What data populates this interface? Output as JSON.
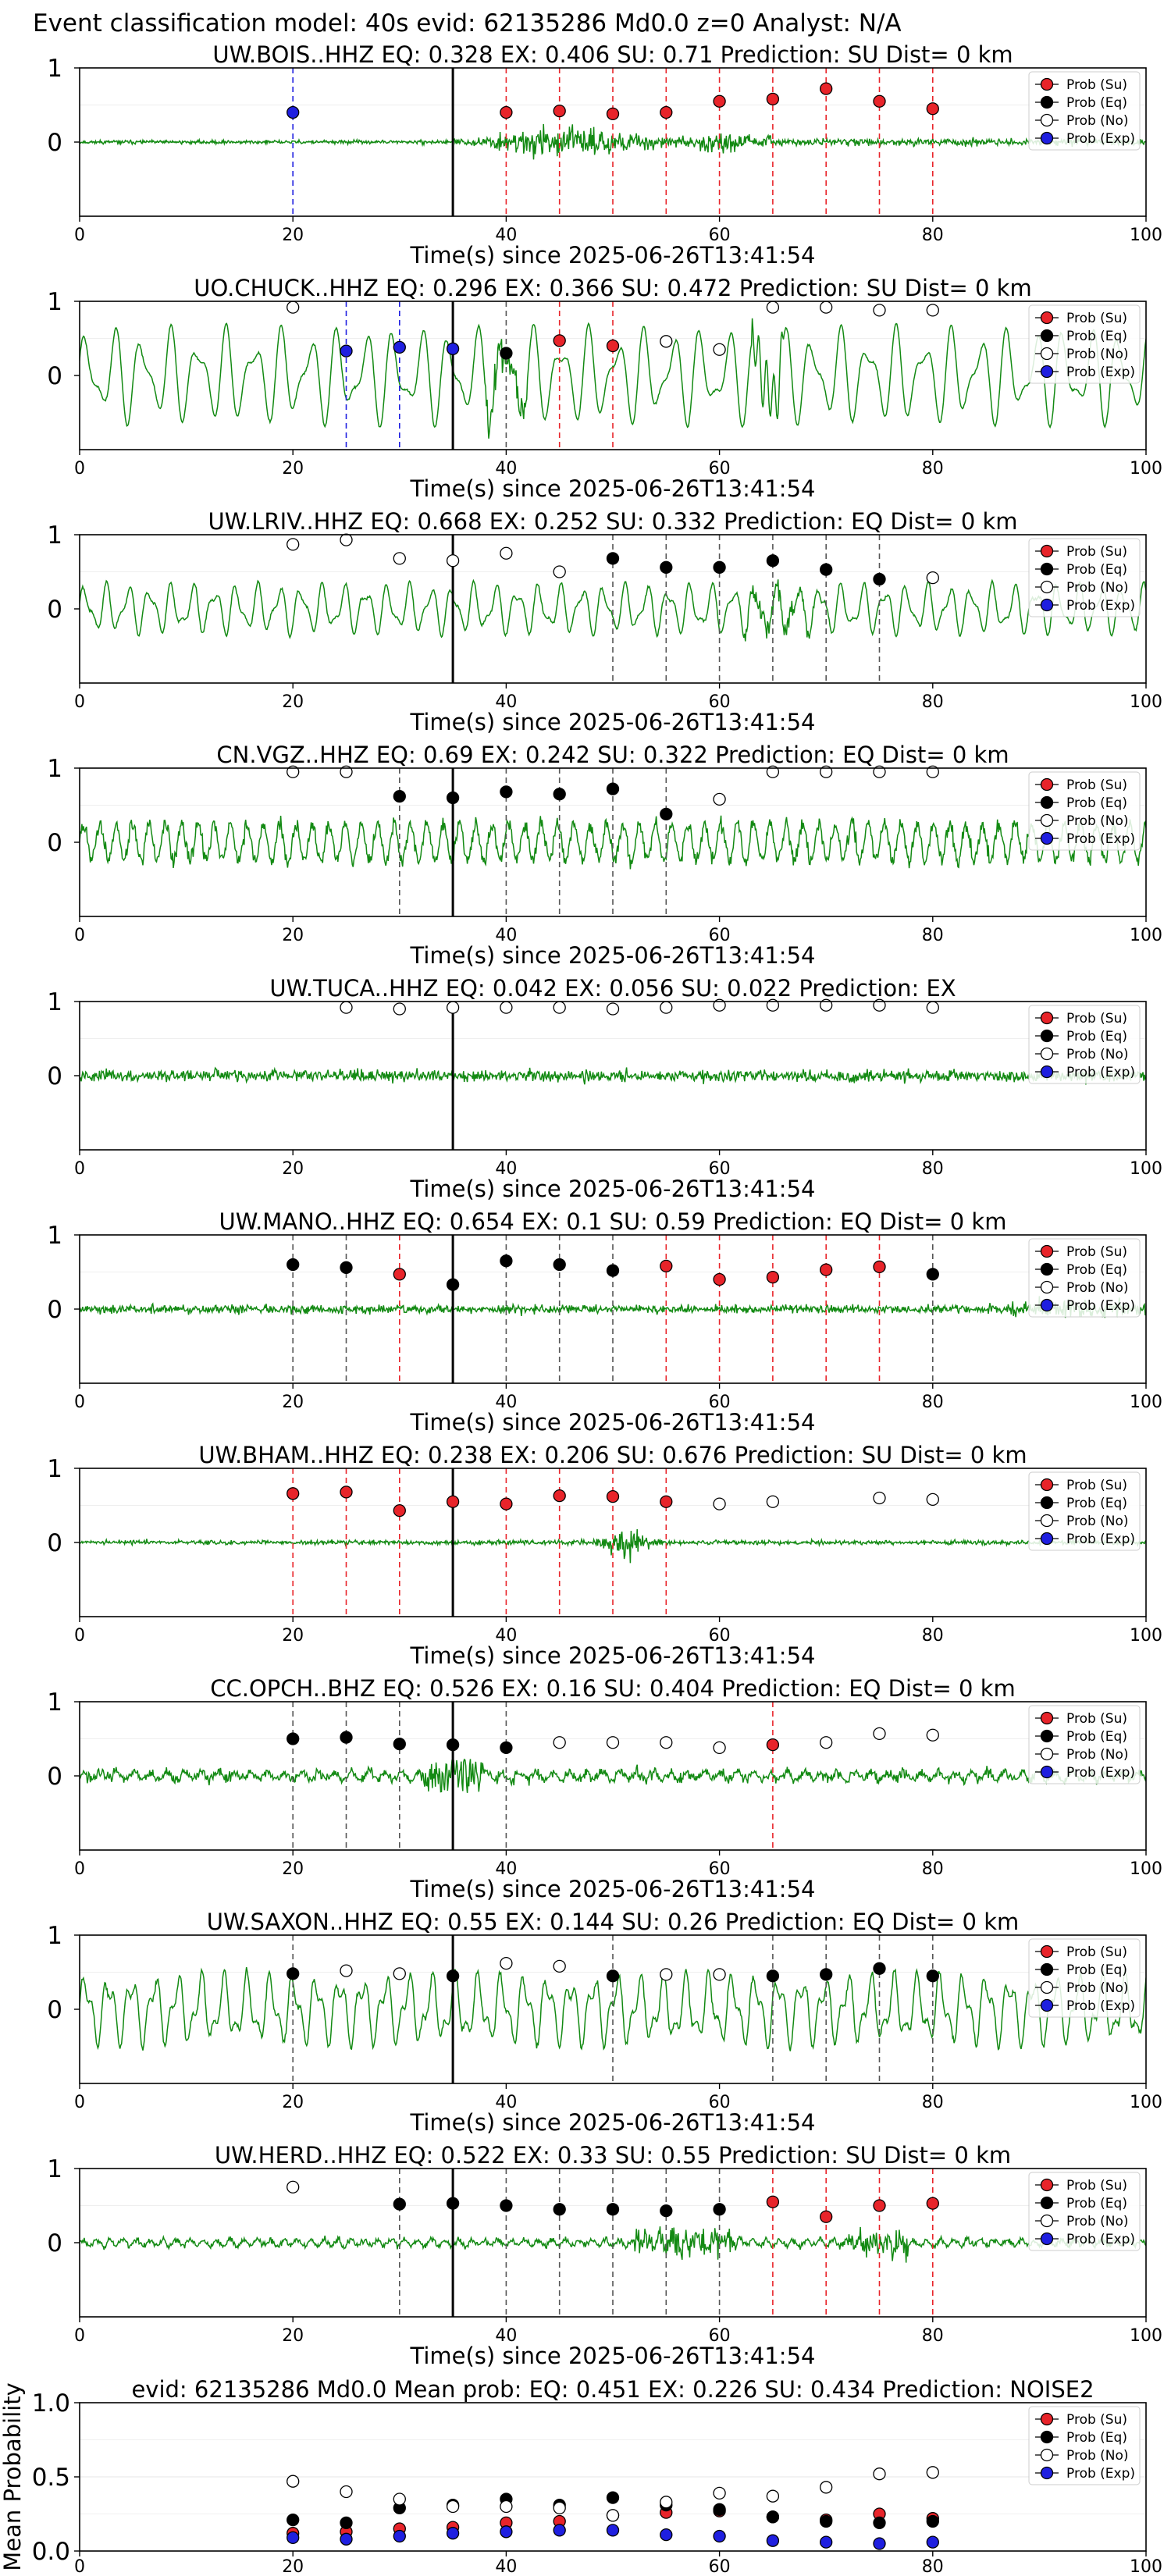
{
  "figure_title": "Event classification model: 40s evid: 62135286 Md0.0 z=0 Analyst: N/A",
  "legend_labels": [
    "Prob (Su)",
    "Prob (Eq)",
    "Prob (No)",
    "Prob (Exp)"
  ],
  "colors": {
    "su": "#e8242a",
    "eq": "#000000",
    "no": "#ffffff",
    "exp": "#1f1fe0",
    "wave": "#138a13",
    "tmark": "#000000"
  },
  "x_ticks": [
    0,
    20,
    40,
    60,
    80,
    100
  ],
  "xlabel": "Time(s) since 2025-06-26T13:41:54",
  "chart_data": [
    {
      "type": "line",
      "title": "UW.BOIS..HHZ   EQ: 0.328   EX: 0.406   SU: 0.71   Prediction: SU    Dist= 0 km",
      "xlabel": "Time(s) since 2025-06-26T13:41:54",
      "xlim": [
        0,
        100
      ],
      "y_ticks": [
        0,
        1
      ],
      "t_marker": 35,
      "wave": {
        "seed": 11,
        "style": "bois"
      },
      "points": [
        {
          "x": 20,
          "y": 0.4,
          "c": "exp"
        },
        {
          "x": 40,
          "y": 0.4,
          "c": "su"
        },
        {
          "x": 45,
          "y": 0.42,
          "c": "su"
        },
        {
          "x": 50,
          "y": 0.38,
          "c": "su"
        },
        {
          "x": 55,
          "y": 0.4,
          "c": "su"
        },
        {
          "x": 60,
          "y": 0.55,
          "c": "su"
        },
        {
          "x": 65,
          "y": 0.58,
          "c": "su"
        },
        {
          "x": 70,
          "y": 0.72,
          "c": "su"
        },
        {
          "x": 75,
          "y": 0.55,
          "c": "su"
        },
        {
          "x": 80,
          "y": 0.45,
          "c": "su"
        }
      ]
    },
    {
      "type": "line",
      "title": "UO.CHUCK..HHZ   EQ: 0.296   EX: 0.366   SU: 0.472   Prediction: SU    Dist= 0 km",
      "xlabel": "Time(s) since 2025-06-26T13:41:54",
      "xlim": [
        0,
        100
      ],
      "y_ticks": [
        0,
        1
      ],
      "t_marker": 35,
      "wave": {
        "seed": 22,
        "style": "lowfreq"
      },
      "points": [
        {
          "x": 20,
          "y": 0.92,
          "c": "no"
        },
        {
          "x": 25,
          "y": 0.33,
          "c": "exp"
        },
        {
          "x": 30,
          "y": 0.38,
          "c": "exp"
        },
        {
          "x": 35,
          "y": 0.36,
          "c": "exp"
        },
        {
          "x": 40,
          "y": 0.3,
          "c": "eq"
        },
        {
          "x": 45,
          "y": 0.47,
          "c": "su"
        },
        {
          "x": 50,
          "y": 0.4,
          "c": "su"
        },
        {
          "x": 55,
          "y": 0.46,
          "c": "no"
        },
        {
          "x": 60,
          "y": 0.35,
          "c": "no"
        },
        {
          "x": 65,
          "y": 0.92,
          "c": "no"
        },
        {
          "x": 70,
          "y": 0.92,
          "c": "no"
        },
        {
          "x": 75,
          "y": 0.88,
          "c": "no"
        },
        {
          "x": 80,
          "y": 0.88,
          "c": "no"
        }
      ]
    },
    {
      "type": "line",
      "title": "UW.LRIV..HHZ   EQ: 0.668   EX: 0.252   SU: 0.332   Prediction: EQ    Dist= 0 km",
      "xlabel": "Time(s) since 2025-06-26T13:41:54",
      "xlim": [
        0,
        100
      ],
      "y_ticks": [
        0,
        1
      ],
      "t_marker": 35,
      "wave": {
        "seed": 33,
        "style": "lriv"
      },
      "points": [
        {
          "x": 20,
          "y": 0.87,
          "c": "no"
        },
        {
          "x": 25,
          "y": 0.93,
          "c": "no"
        },
        {
          "x": 30,
          "y": 0.68,
          "c": "no"
        },
        {
          "x": 35,
          "y": 0.65,
          "c": "no"
        },
        {
          "x": 40,
          "y": 0.75,
          "c": "no"
        },
        {
          "x": 45,
          "y": 0.5,
          "c": "no"
        },
        {
          "x": 50,
          "y": 0.68,
          "c": "eq"
        },
        {
          "x": 55,
          "y": 0.56,
          "c": "eq"
        },
        {
          "x": 60,
          "y": 0.56,
          "c": "eq"
        },
        {
          "x": 65,
          "y": 0.65,
          "c": "eq"
        },
        {
          "x": 70,
          "y": 0.53,
          "c": "eq"
        },
        {
          "x": 75,
          "y": 0.4,
          "c": "eq"
        },
        {
          "x": 80,
          "y": 0.42,
          "c": "no"
        }
      ]
    },
    {
      "type": "line",
      "title": "CN.VGZ..HHZ   EQ: 0.69   EX: 0.242   SU: 0.322   Prediction: EQ    Dist= 0 km",
      "xlabel": "Time(s) since 2025-06-26T13:41:54",
      "xlim": [
        0,
        100
      ],
      "y_ticks": [
        0,
        1
      ],
      "t_marker": 35,
      "wave": {
        "seed": 44,
        "style": "vgz"
      },
      "points": [
        {
          "x": 20,
          "y": 0.95,
          "c": "no"
        },
        {
          "x": 25,
          "y": 0.95,
          "c": "no"
        },
        {
          "x": 30,
          "y": 0.62,
          "c": "eq"
        },
        {
          "x": 35,
          "y": 0.6,
          "c": "eq"
        },
        {
          "x": 40,
          "y": 0.68,
          "c": "eq"
        },
        {
          "x": 45,
          "y": 0.65,
          "c": "eq"
        },
        {
          "x": 50,
          "y": 0.72,
          "c": "eq"
        },
        {
          "x": 55,
          "y": 0.38,
          "c": "eq"
        },
        {
          "x": 60,
          "y": 0.58,
          "c": "no"
        },
        {
          "x": 65,
          "y": 0.95,
          "c": "no"
        },
        {
          "x": 70,
          "y": 0.95,
          "c": "no"
        },
        {
          "x": 75,
          "y": 0.95,
          "c": "no"
        },
        {
          "x": 80,
          "y": 0.95,
          "c": "no"
        }
      ]
    },
    {
      "type": "line",
      "title": "UW.TUCA..HHZ   EQ: 0.042   EX: 0.056   SU: 0.022   Prediction: EX",
      "xlabel": "Time(s) since 2025-06-26T13:41:54",
      "xlim": [
        0,
        100
      ],
      "y_ticks": [
        0,
        1
      ],
      "t_marker": 35,
      "wave": {
        "seed": 55,
        "style": "tuca"
      },
      "points": [
        {
          "x": 25,
          "y": 0.92,
          "c": "no"
        },
        {
          "x": 30,
          "y": 0.9,
          "c": "no"
        },
        {
          "x": 35,
          "y": 0.92,
          "c": "no"
        },
        {
          "x": 40,
          "y": 0.92,
          "c": "no"
        },
        {
          "x": 45,
          "y": 0.92,
          "c": "no"
        },
        {
          "x": 50,
          "y": 0.9,
          "c": "no"
        },
        {
          "x": 55,
          "y": 0.92,
          "c": "no"
        },
        {
          "x": 60,
          "y": 0.95,
          "c": "no"
        },
        {
          "x": 65,
          "y": 0.95,
          "c": "no"
        },
        {
          "x": 70,
          "y": 0.95,
          "c": "no"
        },
        {
          "x": 75,
          "y": 0.95,
          "c": "no"
        },
        {
          "x": 80,
          "y": 0.92,
          "c": "no"
        }
      ]
    },
    {
      "type": "line",
      "title": "UW.MANO..HHZ   EQ: 0.654   EX: 0.1   SU: 0.59   Prediction: EQ    Dist= 0 km",
      "xlabel": "Time(s) since 2025-06-26T13:41:54",
      "xlim": [
        0,
        100
      ],
      "y_ticks": [
        0,
        1
      ],
      "t_marker": 35,
      "wave": {
        "seed": 66,
        "style": "mano"
      },
      "points": [
        {
          "x": 20,
          "y": 0.6,
          "c": "eq"
        },
        {
          "x": 25,
          "y": 0.56,
          "c": "eq"
        },
        {
          "x": 30,
          "y": 0.47,
          "c": "su"
        },
        {
          "x": 35,
          "y": 0.33,
          "c": "eq"
        },
        {
          "x": 40,
          "y": 0.65,
          "c": "eq"
        },
        {
          "x": 45,
          "y": 0.6,
          "c": "eq"
        },
        {
          "x": 50,
          "y": 0.52,
          "c": "eq"
        },
        {
          "x": 55,
          "y": 0.58,
          "c": "su"
        },
        {
          "x": 60,
          "y": 0.4,
          "c": "su"
        },
        {
          "x": 65,
          "y": 0.43,
          "c": "su"
        },
        {
          "x": 70,
          "y": 0.53,
          "c": "su"
        },
        {
          "x": 75,
          "y": 0.57,
          "c": "su"
        },
        {
          "x": 80,
          "y": 0.47,
          "c": "eq"
        }
      ]
    },
    {
      "type": "line",
      "title": "UW.BHAM..HHZ   EQ: 0.238   EX: 0.206   SU: 0.676   Prediction: SU    Dist= 0 km",
      "xlabel": "Time(s) since 2025-06-26T13:41:54",
      "xlim": [
        0,
        100
      ],
      "y_ticks": [
        0,
        1
      ],
      "t_marker": 35,
      "wave": {
        "seed": 77,
        "style": "bham"
      },
      "points": [
        {
          "x": 20,
          "y": 0.66,
          "c": "su"
        },
        {
          "x": 25,
          "y": 0.68,
          "c": "su"
        },
        {
          "x": 30,
          "y": 0.43,
          "c": "su"
        },
        {
          "x": 35,
          "y": 0.55,
          "c": "su"
        },
        {
          "x": 40,
          "y": 0.52,
          "c": "su"
        },
        {
          "x": 45,
          "y": 0.63,
          "c": "su"
        },
        {
          "x": 50,
          "y": 0.62,
          "c": "su"
        },
        {
          "x": 55,
          "y": 0.55,
          "c": "su"
        },
        {
          "x": 60,
          "y": 0.52,
          "c": "no"
        },
        {
          "x": 65,
          "y": 0.55,
          "c": "no"
        },
        {
          "x": 75,
          "y": 0.6,
          "c": "no"
        },
        {
          "x": 80,
          "y": 0.58,
          "c": "no"
        }
      ]
    },
    {
      "type": "line",
      "title": "CC.OPCH..BHZ   EQ: 0.526   EX: 0.16   SU: 0.404   Prediction: EQ    Dist= 0 km",
      "xlabel": "Time(s) since 2025-06-26T13:41:54",
      "xlim": [
        0,
        100
      ],
      "y_ticks": [
        0,
        1
      ],
      "t_marker": 35,
      "wave": {
        "seed": 88,
        "style": "opch"
      },
      "points": [
        {
          "x": 20,
          "y": 0.5,
          "c": "eq"
        },
        {
          "x": 25,
          "y": 0.52,
          "c": "eq"
        },
        {
          "x": 30,
          "y": 0.43,
          "c": "eq"
        },
        {
          "x": 35,
          "y": 0.42,
          "c": "eq"
        },
        {
          "x": 40,
          "y": 0.38,
          "c": "eq"
        },
        {
          "x": 45,
          "y": 0.45,
          "c": "no"
        },
        {
          "x": 50,
          "y": 0.45,
          "c": "no"
        },
        {
          "x": 55,
          "y": 0.45,
          "c": "no"
        },
        {
          "x": 60,
          "y": 0.38,
          "c": "no"
        },
        {
          "x": 65,
          "y": 0.42,
          "c": "su"
        },
        {
          "x": 70,
          "y": 0.45,
          "c": "no"
        },
        {
          "x": 75,
          "y": 0.57,
          "c": "no"
        },
        {
          "x": 80,
          "y": 0.55,
          "c": "no"
        }
      ]
    },
    {
      "type": "line",
      "title": "UW.SAXON..HHZ   EQ: 0.55   EX: 0.144   SU: 0.26   Prediction: EQ    Dist= 0 km",
      "xlabel": "Time(s) since 2025-06-26T13:41:54",
      "xlim": [
        0,
        100
      ],
      "y_ticks": [
        0,
        1
      ],
      "t_marker": 35,
      "wave": {
        "seed": 99,
        "style": "saxon"
      },
      "points": [
        {
          "x": 20,
          "y": 0.48,
          "c": "eq"
        },
        {
          "x": 25,
          "y": 0.52,
          "c": "no"
        },
        {
          "x": 30,
          "y": 0.48,
          "c": "no"
        },
        {
          "x": 35,
          "y": 0.45,
          "c": "eq"
        },
        {
          "x": 40,
          "y": 0.62,
          "c": "no"
        },
        {
          "x": 45,
          "y": 0.58,
          "c": "no"
        },
        {
          "x": 50,
          "y": 0.45,
          "c": "eq"
        },
        {
          "x": 55,
          "y": 0.47,
          "c": "no"
        },
        {
          "x": 60,
          "y": 0.47,
          "c": "no"
        },
        {
          "x": 65,
          "y": 0.45,
          "c": "eq"
        },
        {
          "x": 70,
          "y": 0.47,
          "c": "eq"
        },
        {
          "x": 75,
          "y": 0.55,
          "c": "eq"
        },
        {
          "x": 80,
          "y": 0.45,
          "c": "eq"
        }
      ]
    },
    {
      "type": "line",
      "title": "UW.HERD..HHZ   EQ: 0.522   EX: 0.33   SU: 0.55   Prediction: SU    Dist= 0 km",
      "xlabel": "Time(s) since 2025-06-26T13:41:54",
      "xlim": [
        0,
        100
      ],
      "y_ticks": [
        0,
        1
      ],
      "t_marker": 35,
      "wave": {
        "seed": 111,
        "style": "herd"
      },
      "points": [
        {
          "x": 20,
          "y": 0.75,
          "c": "no"
        },
        {
          "x": 30,
          "y": 0.52,
          "c": "eq"
        },
        {
          "x": 35,
          "y": 0.53,
          "c": "eq"
        },
        {
          "x": 40,
          "y": 0.5,
          "c": "eq"
        },
        {
          "x": 45,
          "y": 0.45,
          "c": "eq"
        },
        {
          "x": 50,
          "y": 0.45,
          "c": "eq"
        },
        {
          "x": 55,
          "y": 0.43,
          "c": "eq"
        },
        {
          "x": 60,
          "y": 0.45,
          "c": "eq"
        },
        {
          "x": 65,
          "y": 0.55,
          "c": "su"
        },
        {
          "x": 70,
          "y": 0.35,
          "c": "su"
        },
        {
          "x": 75,
          "y": 0.5,
          "c": "su"
        },
        {
          "x": 80,
          "y": 0.53,
          "c": "su"
        }
      ]
    },
    {
      "type": "scatter",
      "title": "evid: 62135286  Md0.0   Mean prob:   EQ: 0.451   EX: 0.226   SU: 0.434   Prediction: NOISE2",
      "ylabel": "Mean Probability",
      "xlim": [
        0,
        100
      ],
      "ylim": [
        0,
        1.0
      ],
      "y_ticks": [
        0.0,
        0.5,
        1.0
      ],
      "y_tick_labels": [
        "0.0",
        "0.5",
        "1.0"
      ],
      "x": [
        20,
        25,
        30,
        35,
        40,
        45,
        50,
        55,
        60,
        65,
        70,
        75,
        80
      ],
      "series": [
        {
          "name": "Prob (Su)",
          "c": "su",
          "values": [
            0.12,
            0.13,
            0.15,
            0.16,
            0.19,
            0.2,
            0.24,
            0.26,
            0.27,
            0.23,
            0.21,
            0.25,
            0.22
          ]
        },
        {
          "name": "Prob (Eq)",
          "c": "eq",
          "values": [
            0.21,
            0.19,
            0.29,
            0.31,
            0.35,
            0.31,
            0.36,
            0.31,
            0.28,
            0.23,
            0.2,
            0.19,
            0.2
          ]
        },
        {
          "name": "Prob (No)",
          "c": "no",
          "values": [
            0.47,
            0.4,
            0.35,
            0.3,
            0.3,
            0.29,
            0.24,
            0.33,
            0.39,
            0.37,
            0.43,
            0.52,
            0.53
          ]
        },
        {
          "name": "Prob (Exp)",
          "c": "exp",
          "values": [
            0.09,
            0.08,
            0.1,
            0.12,
            0.13,
            0.14,
            0.14,
            0.11,
            0.1,
            0.07,
            0.06,
            0.05,
            0.06
          ]
        }
      ]
    }
  ]
}
